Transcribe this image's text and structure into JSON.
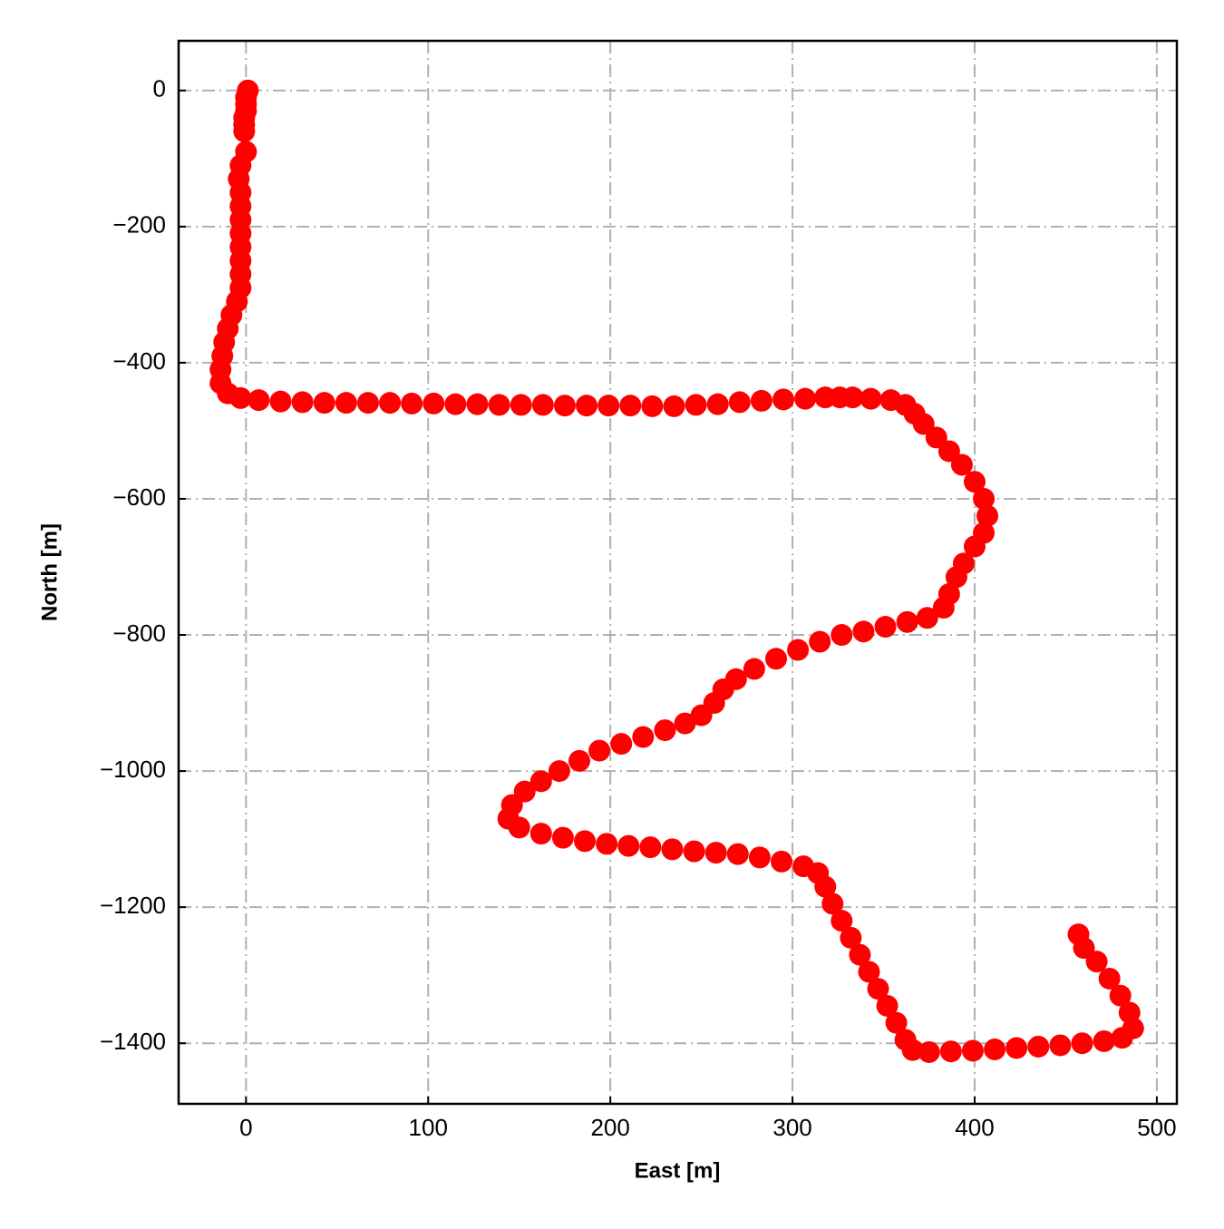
{
  "chart_data": {
    "type": "scatter",
    "xlabel": "East [m]",
    "ylabel": "North [m]",
    "color": "#ff0000",
    "grid": true,
    "xlim": [
      -37,
      511
    ],
    "ylim": [
      -1489,
      73
    ],
    "xticks": [
      0,
      100,
      200,
      300,
      400,
      500
    ],
    "yticks": [
      {
        "value": -1400,
        "label": "−1400"
      },
      {
        "value": -1200,
        "label": "−1200"
      },
      {
        "value": -1000,
        "label": "−1000"
      },
      {
        "value": -800,
        "label": "−800"
      },
      {
        "value": -600,
        "label": "−600"
      },
      {
        "value": -400,
        "label": "−400"
      },
      {
        "value": -200,
        "label": "−200"
      },
      0
    ],
    "x": [
      1,
      0,
      0,
      0,
      -1,
      -1,
      -1,
      0,
      -3,
      -4,
      -3,
      -3,
      -3,
      -3,
      -3,
      -3,
      -3,
      -3,
      -5,
      -8,
      -10,
      -12,
      -13,
      -14,
      -14,
      -10,
      -3,
      7,
      19,
      31,
      43,
      55,
      67,
      79,
      91,
      103,
      115,
      127,
      139,
      151,
      163,
      175,
      187,
      199,
      211,
      223,
      235,
      247,
      259,
      271,
      283,
      295,
      307,
      318,
      326,
      333,
      343,
      354,
      362,
      367,
      372,
      379,
      386,
      393,
      400,
      405,
      407,
      405,
      400,
      394,
      390,
      386,
      383,
      374,
      363,
      351,
      339,
      327,
      315,
      303,
      291,
      279,
      269,
      262,
      257,
      250,
      241,
      230,
      218,
      206,
      194,
      183,
      172,
      162,
      153,
      146,
      144,
      150,
      162,
      174,
      186,
      198,
      210,
      222,
      234,
      246,
      258,
      270,
      282,
      294,
      306,
      314,
      318,
      322,
      327,
      332,
      337,
      342,
      347,
      352,
      357,
      362,
      366,
      375,
      387,
      399,
      411,
      423,
      435,
      447,
      459,
      471,
      481,
      487,
      485,
      480,
      474,
      467,
      460,
      457
    ],
    "values": [
      0,
      -10,
      -20,
      -30,
      -40,
      -50,
      -60,
      -90,
      -110,
      -130,
      -150,
      -170,
      -190,
      -210,
      -230,
      -250,
      -270,
      -290,
      -310,
      -330,
      -350,
      -370,
      -390,
      -410,
      -430,
      -445,
      -452,
      -455,
      -457,
      -458,
      -459,
      -459,
      -459,
      -459,
      -460,
      -460,
      -461,
      -461,
      -462,
      -462,
      -462,
      -463,
      -463,
      -463,
      -463,
      -464,
      -464,
      -462,
      -461,
      -458,
      -456,
      -454,
      -453,
      -451,
      -451,
      -451,
      -453,
      -455,
      -462,
      -475,
      -490,
      -510,
      -530,
      -550,
      -575,
      -600,
      -625,
      -650,
      -670,
      -695,
      -715,
      -740,
      -760,
      -775,
      -781,
      -788,
      -795,
      -800,
      -810,
      -822,
      -835,
      -850,
      -865,
      -880,
      -900,
      -918,
      -930,
      -940,
      -950,
      -960,
      -970,
      -985,
      -1000,
      -1015,
      -1030,
      -1050,
      -1070,
      -1083,
      -1092,
      -1098,
      -1103,
      -1107,
      -1110,
      -1112,
      -1115,
      -1118,
      -1120,
      -1122,
      -1127,
      -1133,
      -1140,
      -1150,
      -1170,
      -1195,
      -1220,
      -1245,
      -1270,
      -1295,
      -1320,
      -1345,
      -1370,
      -1395,
      -1410,
      -1413,
      -1412,
      -1411,
      -1409,
      -1407,
      -1405,
      -1403,
      -1400,
      -1397,
      -1392,
      -1378,
      -1355,
      -1330,
      -1305,
      -1280,
      -1260,
      -1240
    ]
  }
}
